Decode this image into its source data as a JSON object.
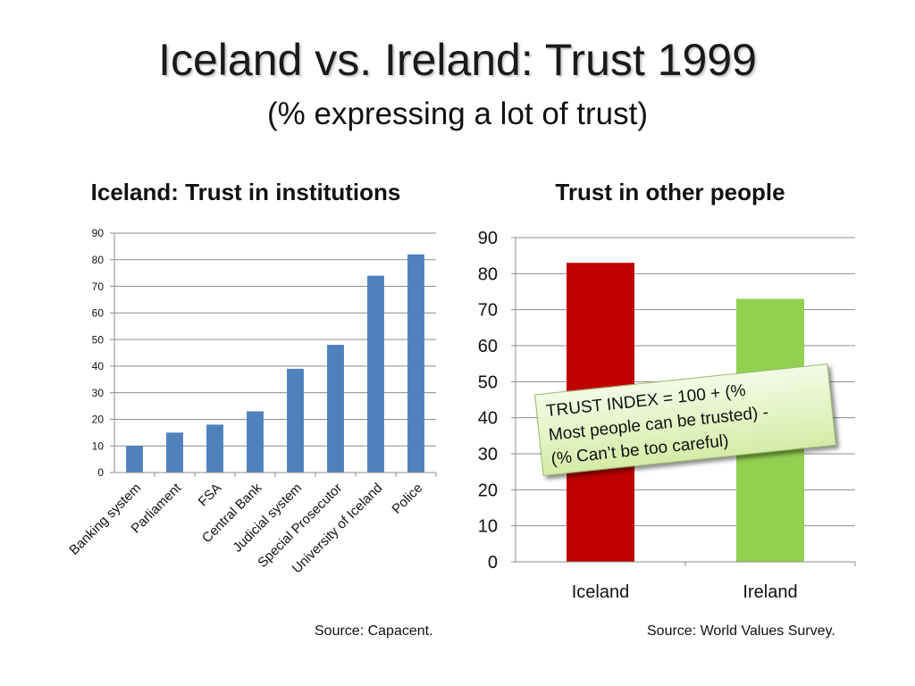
{
  "slide": {
    "title": "Iceland vs. Ireland: Trust 1999",
    "subtitle": "(% expressing a lot of trust)",
    "source_left": "Source: Capacent.",
    "source_right": "Source: World Values Survey."
  },
  "callout": {
    "lines": [
      "TRUST INDEX = 100 + (%",
      "Most people can be trusted) -",
      "(% Can’t be too careful)"
    ]
  },
  "chart_data": [
    {
      "type": "bar",
      "title": "Iceland: Trust in institutions",
      "categories": [
        "Banking system",
        "Parliament",
        "FSA",
        "Central Bank",
        "Judicial system",
        "Special Prosecutor",
        "University of Iceland",
        "Police"
      ],
      "values": [
        10,
        15,
        18,
        23,
        39,
        48,
        74,
        82
      ],
      "ylim": [
        0,
        90
      ],
      "yticks": [
        0,
        10,
        20,
        30,
        40,
        50,
        60,
        70,
        80,
        90
      ],
      "grid": true,
      "colors": [
        "#4f81bd"
      ]
    },
    {
      "type": "bar",
      "title": "Trust in other people",
      "categories": [
        "Iceland",
        "Ireland"
      ],
      "values": [
        83,
        73
      ],
      "ylim": [
        0,
        90
      ],
      "yticks": [
        0,
        10,
        20,
        30,
        40,
        50,
        60,
        70,
        80,
        90
      ],
      "grid": true,
      "colors": [
        "#c00000",
        "#92d050"
      ]
    }
  ]
}
